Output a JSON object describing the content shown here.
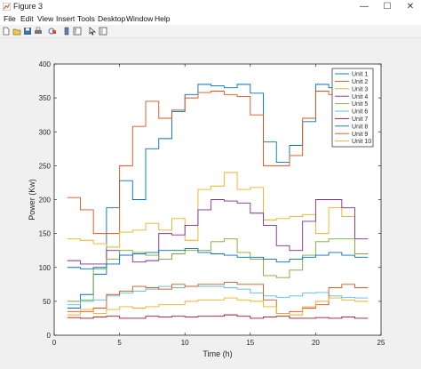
{
  "window": {
    "title": "Figure 3",
    "minimize": "—",
    "maximize": "☐",
    "close": "✕"
  },
  "menu": [
    "File",
    "Edit",
    "View",
    "Insert",
    "Tools",
    "Desktop",
    "Window",
    "Help"
  ],
  "toolbar": [
    "new-figure",
    "open-file",
    "save",
    "print",
    "link-plot",
    "insert-colorbar",
    "insert-legend",
    "pointer",
    "property-inspector"
  ],
  "chart_data": {
    "type": "line",
    "step": true,
    "xlabel": "Time (h)",
    "ylabel": "Power (Kw)",
    "xlim": [
      0,
      25
    ],
    "ylim": [
      0,
      400
    ],
    "xticks": [
      0,
      5,
      10,
      15,
      20,
      25
    ],
    "yticks": [
      0,
      50,
      100,
      150,
      200,
      250,
      300,
      350,
      400
    ],
    "grid": false,
    "legend_position": "top-right",
    "x": [
      1,
      2,
      3,
      4,
      5,
      6,
      7,
      8,
      9,
      10,
      11,
      12,
      13,
      14,
      15,
      16,
      17,
      18,
      19,
      20,
      21,
      22,
      23,
      24
    ],
    "series": [
      {
        "name": "Unit 1",
        "color": "#0072BD",
        "values": [
          40,
          60,
          90,
          188,
          228,
          200,
          275,
          290,
          330,
          355,
          370,
          368,
          365,
          370,
          357,
          285,
          255,
          280,
          315,
          370,
          365,
          360,
          360,
          360
        ]
      },
      {
        "name": "Unit 2",
        "color": "#D95319",
        "values": [
          203,
          185,
          150,
          150,
          250,
          308,
          345,
          320,
          332,
          350,
          358,
          360,
          355,
          352,
          325,
          250,
          250,
          265,
          320,
          360,
          355,
          360,
          355,
          355
        ]
      },
      {
        "name": "Unit 3",
        "color": "#EDB120",
        "values": [
          142,
          140,
          135,
          130,
          152,
          155,
          165,
          155,
          172,
          140,
          215,
          220,
          240,
          215,
          218,
          170,
          172,
          175,
          178,
          150,
          188,
          175,
          120,
          120
        ]
      },
      {
        "name": "Unit 4",
        "color": "#7E2F8E",
        "values": [
          110,
          105,
          105,
          125,
          118,
          108,
          110,
          150,
          148,
          162,
          185,
          200,
          198,
          195,
          180,
          162,
          132,
          125,
          168,
          200,
          200,
          188,
          142,
          142
        ]
      },
      {
        "name": "Unit 5",
        "color": "#77AC30",
        "values": [
          50,
          52,
          98,
          112,
          125,
          122,
          118,
          112,
          120,
          125,
          125,
          138,
          142,
          122,
          112,
          88,
          85,
          96,
          118,
          138,
          142,
          142,
          120,
          120
        ]
      },
      {
        "name": "Unit 6",
        "color": "#4DBEEE",
        "values": [
          45,
          50,
          52,
          58,
          62,
          65,
          68,
          72,
          70,
          72,
          72,
          72,
          70,
          68,
          62,
          58,
          56,
          58,
          62,
          63,
          58,
          56,
          55,
          55
        ]
      },
      {
        "name": "Unit 7",
        "color": "#A2142F",
        "values": [
          26,
          25,
          27,
          28,
          25,
          25,
          28,
          27,
          28,
          27,
          28,
          28,
          30,
          28,
          25,
          27,
          28,
          25,
          25,
          26,
          25,
          27,
          25,
          25
        ]
      },
      {
        "name": "Unit 8",
        "color": "#0072BD",
        "values": [
          100,
          98,
          100,
          105,
          118,
          120,
          122,
          125,
          125,
          128,
          122,
          120,
          118,
          115,
          115,
          112,
          108,
          112,
          115,
          118,
          122,
          118,
          115,
          115
        ]
      },
      {
        "name": "Unit 9",
        "color": "#D95319",
        "values": [
          35,
          35,
          40,
          60,
          65,
          72,
          70,
          68,
          75,
          72,
          75,
          75,
          78,
          75,
          75,
          52,
          32,
          35,
          40,
          45,
          70,
          75,
          70,
          70
        ]
      },
      {
        "name": "Unit 10",
        "color": "#EDB120",
        "values": [
          30,
          38,
          32,
          38,
          42,
          40,
          42,
          45,
          45,
          50,
          52,
          52,
          55,
          52,
          50,
          42,
          32,
          30,
          42,
          50,
          55,
          52,
          50,
          50
        ]
      }
    ]
  }
}
